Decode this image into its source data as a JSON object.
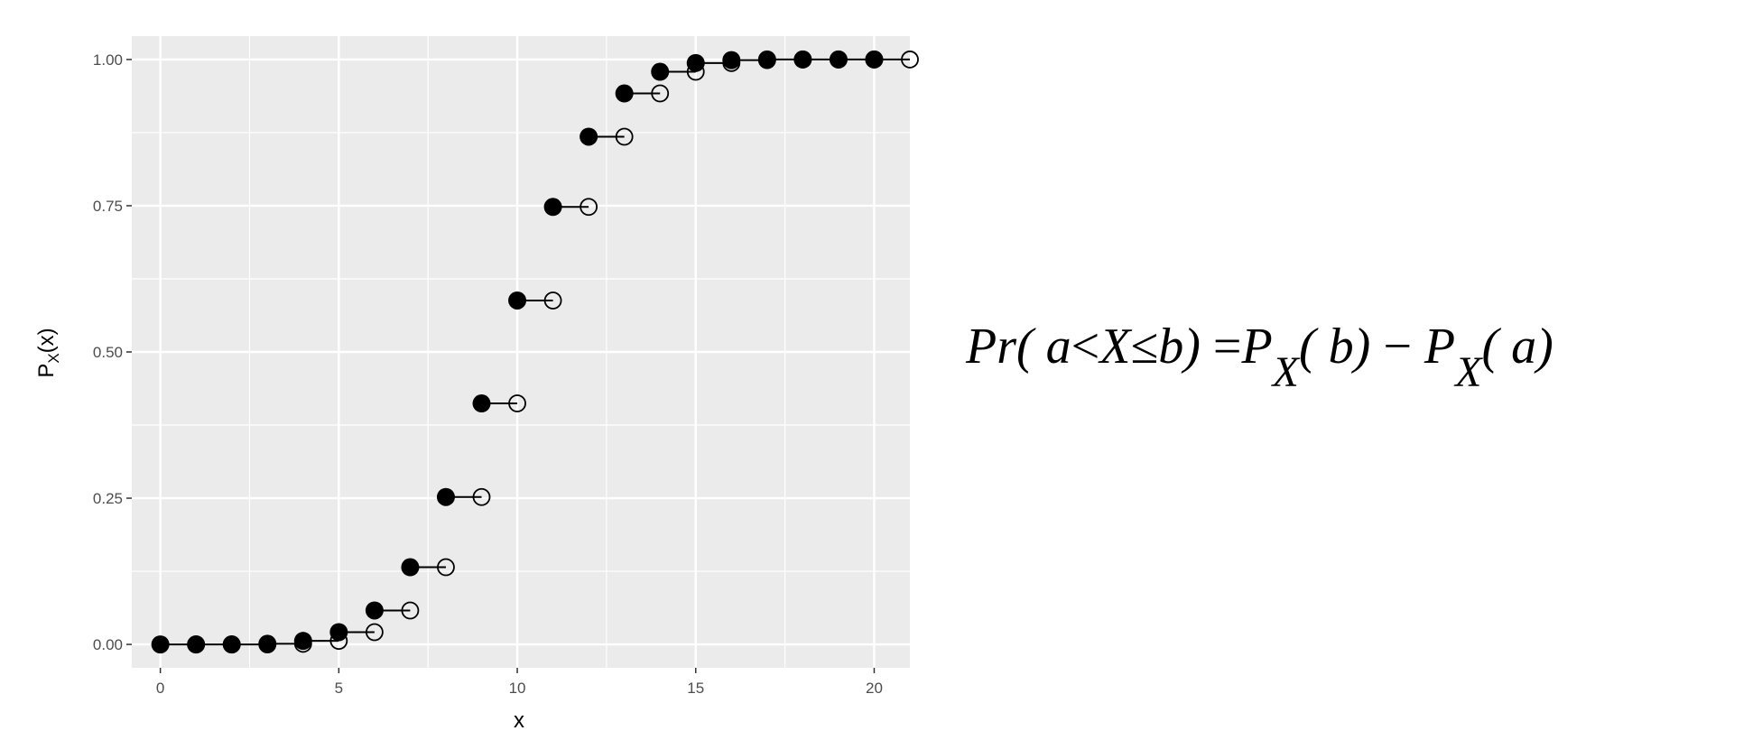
{
  "chart_data": {
    "type": "step",
    "xlabel": "x",
    "ylabel_main": "P",
    "ylabel_sub": "X",
    "ylabel_arg": "(x)",
    "xlim": [
      -0.8,
      21
    ],
    "ylim": [
      -0.04,
      1.04
    ],
    "xticks": [
      0,
      5,
      10,
      15,
      20
    ],
    "xtick_labels": [
      "0",
      "5",
      "10",
      "15",
      "20"
    ],
    "yticks": [
      0,
      0.25,
      0.5,
      0.75,
      1.0
    ],
    "ytick_labels": [
      "0.00",
      "0.25",
      "0.50",
      "0.75",
      "1.00"
    ],
    "x": [
      0,
      1,
      2,
      3,
      4,
      5,
      6,
      7,
      8,
      9,
      10,
      11,
      12,
      13,
      14,
      15,
      16,
      17,
      18,
      19,
      20
    ],
    "y": [
      0.0,
      0.0,
      0.0,
      0.001,
      0.006,
      0.021,
      0.058,
      0.132,
      0.252,
      0.412,
      0.588,
      0.748,
      0.868,
      0.942,
      0.979,
      0.994,
      0.999,
      1.0,
      1.0,
      1.0,
      1.0
    ],
    "background": "#ebebeb",
    "grid": true,
    "grid_color": "#ffffff"
  },
  "formula": {
    "pr": "Pr",
    "open1": "(",
    "a1": "a",
    "lt": "<",
    "X1": "X",
    "le": "≤",
    "b1": "b",
    "close1": ")",
    "eq": "=",
    "P1": "P",
    "sub1": "X",
    "open2": "(",
    "b2": "b",
    "close2": ")",
    "minus": "−",
    "P2": "P",
    "sub2": "X",
    "open3": "(",
    "a2": "a",
    "close3": ")"
  }
}
